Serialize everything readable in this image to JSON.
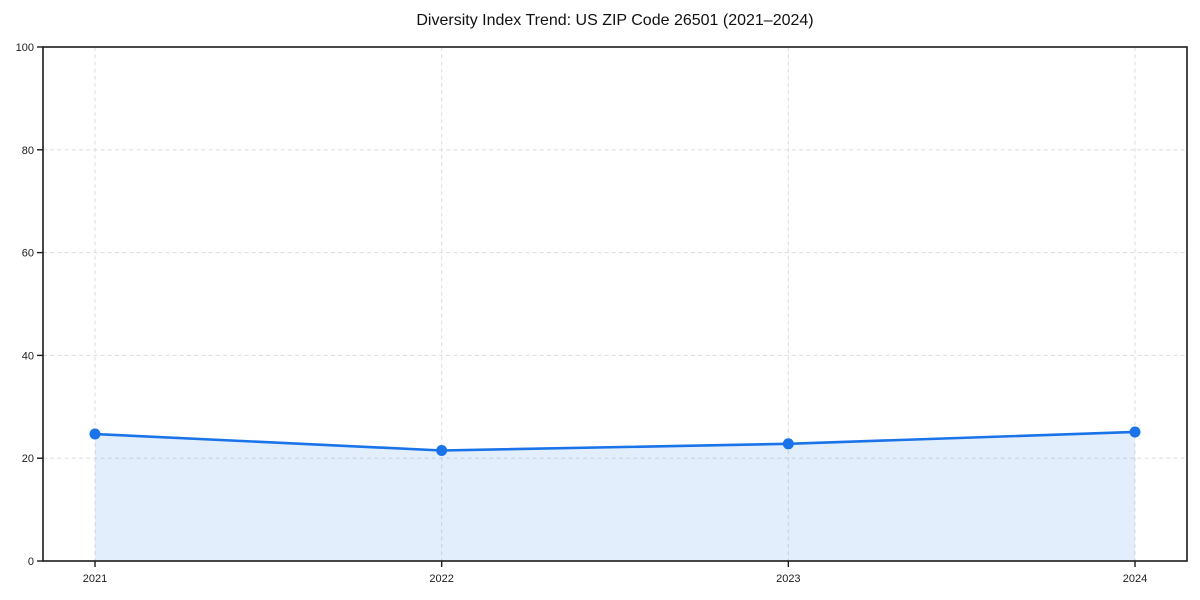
{
  "page": {
    "background": "#ffffff"
  },
  "chart_data": {
    "type": "area",
    "title": "Diversity Index Trend: US ZIP Code 26501 (2021–2024)",
    "x": [
      2021,
      2022,
      2023,
      2024
    ],
    "series": [
      {
        "name": "Diversity Index",
        "values": [
          24.7,
          21.5,
          22.8,
          25.1
        ]
      }
    ],
    "xlabel": "",
    "ylabel": "",
    "xlim": [
      2020.85,
      2024.15
    ],
    "ylim": [
      0,
      100
    ],
    "xticks": [
      2021,
      2022,
      2023,
      2024
    ],
    "xtick_labels": [
      "2021",
      "2022",
      "2023",
      "2024"
    ],
    "yticks": [
      0,
      20,
      40,
      60,
      80,
      100
    ],
    "ytick_labels": [
      "0",
      "20",
      "40",
      "60",
      "80",
      "100"
    ],
    "grid": true,
    "grid_style": "dashed",
    "legend": false,
    "colors": {
      "line": "#1a73e8",
      "marker": "#1a73e8",
      "fill": "rgba(26,115,232,0.12)",
      "grid": "#e0e0e0",
      "spine": "#1c1c1c",
      "tick_label": "#1c1c1c",
      "title": "#111111"
    }
  }
}
